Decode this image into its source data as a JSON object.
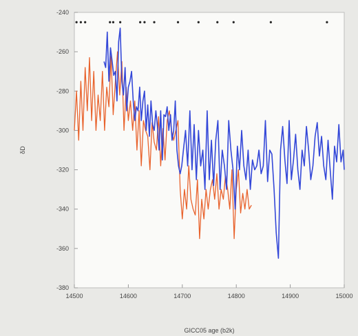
{
  "chart_data": {
    "type": "line",
    "title": "",
    "xlabel": "GICC05 age (b2k)",
    "ylabel": "δD",
    "xlim": [
      14500,
      15000
    ],
    "ylim": [
      -380,
      -240
    ],
    "xticks": [
      14500,
      14600,
      14700,
      14800,
      14900,
      15000
    ],
    "yticks": [
      -240,
      -260,
      -280,
      -300,
      -320,
      -340,
      -360,
      -380
    ],
    "grid": false,
    "legend": "none",
    "markers": {
      "y": -245,
      "x": [
        14504,
        14512,
        14520,
        14566,
        14572,
        14585,
        14622,
        14630,
        14648,
        14692,
        14730,
        14765,
        14795,
        14864,
        14968
      ]
    },
    "series": [
      {
        "color": "#e8622c",
        "x": [
          14500,
          14504,
          14508,
          14512,
          14516,
          14520,
          14524,
          14528,
          14532,
          14536,
          14540,
          14544,
          14548,
          14552,
          14556,
          14560,
          14564,
          14568,
          14572,
          14576,
          14580,
          14584,
          14588,
          14592,
          14596,
          14600,
          14604,
          14608,
          14612,
          14616,
          14620,
          14624,
          14628,
          14632,
          14636,
          14640,
          14644,
          14648,
          14652,
          14656,
          14660,
          14664,
          14668,
          14672,
          14676,
          14680,
          14684,
          14688,
          14692,
          14696,
          14700,
          14704,
          14708,
          14712,
          14716,
          14720,
          14724,
          14728,
          14732,
          14736,
          14740,
          14744,
          14748,
          14752,
          14756,
          14760,
          14764,
          14768,
          14772,
          14776,
          14780,
          14784,
          14788,
          14792,
          14796,
          14800,
          14804,
          14808,
          14812,
          14816,
          14820,
          14824,
          14828
        ],
        "y": [
          -300,
          -280,
          -305,
          -275,
          -300,
          -268,
          -290,
          -263,
          -295,
          -270,
          -300,
          -282,
          -295,
          -270,
          -300,
          -278,
          -288,
          -262,
          -292,
          -275,
          -260,
          -282,
          -265,
          -300,
          -278,
          -295,
          -285,
          -300,
          -285,
          -310,
          -290,
          -318,
          -295,
          -300,
          -303,
          -320,
          -296,
          -306,
          -310,
          -293,
          -318,
          -299,
          -315,
          -295,
          -290,
          -300,
          -305,
          -300,
          -295,
          -330,
          -345,
          -330,
          -340,
          -318,
          -335,
          -340,
          -343,
          -325,
          -355,
          -335,
          -345,
          -330,
          -340,
          -330,
          -325,
          -335,
          -322,
          -340,
          -330,
          -335,
          -323,
          -330,
          -340,
          -320,
          -355,
          -330,
          -320,
          -342,
          -332,
          -340,
          -330,
          -340,
          -338
        ]
      },
      {
        "color": "#3448d8",
        "x": [
          14555,
          14558,
          14561,
          14564,
          14567,
          14570,
          14573,
          14576,
          14579,
          14582,
          14585,
          14588,
          14591,
          14594,
          14597,
          14600,
          14603,
          14606,
          14609,
          14612,
          14615,
          14618,
          14621,
          14624,
          14627,
          14630,
          14633,
          14636,
          14639,
          14642,
          14645,
          14648,
          14651,
          14654,
          14657,
          14660,
          14663,
          14666,
          14669,
          14672,
          14675,
          14678,
          14681,
          14684,
          14687,
          14690,
          14693,
          14696,
          14699,
          14702,
          14706,
          14710,
          14714,
          14718,
          14722,
          14726,
          14730,
          14734,
          14738,
          14742,
          14746,
          14750,
          14754,
          14758,
          14762,
          14766,
          14770,
          14774,
          14778,
          14782,
          14786,
          14790,
          14794,
          14798,
          14802,
          14806,
          14810,
          14814,
          14818,
          14822,
          14826,
          14830,
          14834,
          14838,
          14842,
          14846,
          14850,
          14854,
          14858,
          14862,
          14866,
          14870,
          14874,
          14878,
          14882,
          14886,
          14890,
          14894,
          14898,
          14902,
          14906,
          14910,
          14914,
          14918,
          14922,
          14926,
          14930,
          14934,
          14938,
          14942,
          14946,
          14950,
          14954,
          14958,
          14962,
          14966,
          14970,
          14974,
          14978,
          14982,
          14986,
          14990,
          14994,
          14998,
          15000
        ],
        "y": [
          -265,
          -268,
          -250,
          -275,
          -258,
          -265,
          -272,
          -270,
          -285,
          -255,
          -248,
          -275,
          -282,
          -268,
          -290,
          -278,
          -275,
          -270,
          -285,
          -295,
          -288,
          -290,
          -278,
          -295,
          -285,
          -280,
          -300,
          -287,
          -303,
          -285,
          -297,
          -300,
          -290,
          -298,
          -310,
          -290,
          -315,
          -292,
          -293,
          -288,
          -300,
          -292,
          -305,
          -300,
          -285,
          -310,
          -318,
          -322,
          -318,
          -310,
          -300,
          -318,
          -290,
          -320,
          -297,
          -325,
          -300,
          -318,
          -310,
          -330,
          -290,
          -325,
          -305,
          -328,
          -305,
          -295,
          -330,
          -310,
          -318,
          -330,
          -295,
          -310,
          -320,
          -340,
          -308,
          -320,
          -300,
          -318,
          -325,
          -310,
          -330,
          -315,
          -320,
          -318,
          -310,
          -322,
          -318,
          -295,
          -326,
          -310,
          -312,
          -330,
          -352,
          -365,
          -310,
          -298,
          -315,
          -327,
          -295,
          -325,
          -315,
          -302,
          -320,
          -330,
          -310,
          -318,
          -298,
          -310,
          -325,
          -318,
          -303,
          -296,
          -313,
          -303,
          -318,
          -325,
          -305,
          -320,
          -335,
          -308,
          -316,
          -297,
          -316,
          -310,
          -320
        ]
      }
    ]
  }
}
